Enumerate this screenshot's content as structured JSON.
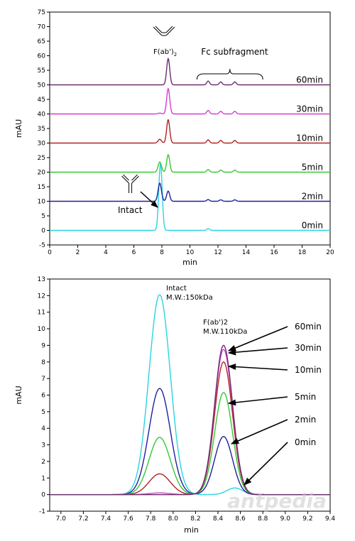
{
  "chart_data": [
    {
      "type": "line",
      "xlabel": "min",
      "ylabel": "mAU",
      "xlim": [
        0,
        20
      ],
      "ylim": [
        -5,
        75
      ],
      "xticks": [
        0,
        2,
        4,
        6,
        8,
        10,
        12,
        14,
        16,
        18,
        20
      ],
      "yticks": [
        -5,
        0,
        5,
        10,
        15,
        20,
        25,
        30,
        35,
        40,
        45,
        50,
        55,
        60,
        65,
        70,
        75
      ],
      "series": [
        {
          "name": "0min",
          "color": "#2ad4e0",
          "baseline": 0,
          "peaks": [
            {
              "x": 7.9,
              "height": 23,
              "width": 0.12
            },
            {
              "x": 11.3,
              "height": 0.6,
              "width": 0.1
            }
          ]
        },
        {
          "name": "2min",
          "color": "#1f1f9e",
          "baseline": 10,
          "peaks": [
            {
              "x": 7.85,
              "height": 6.2,
              "width": 0.12
            },
            {
              "x": 8.45,
              "height": 3.5,
              "width": 0.11
            },
            {
              "x": 11.3,
              "height": 0.6,
              "width": 0.1
            },
            {
              "x": 12.2,
              "height": 0.5,
              "width": 0.1
            },
            {
              "x": 13.2,
              "height": 0.5,
              "width": 0.1
            }
          ]
        },
        {
          "name": "5min",
          "color": "#35c835",
          "baseline": 20,
          "peaks": [
            {
              "x": 7.85,
              "height": 3.5,
              "width": 0.12
            },
            {
              "x": 8.45,
              "height": 6,
              "width": 0.11
            },
            {
              "x": 11.3,
              "height": 0.9,
              "width": 0.1
            },
            {
              "x": 12.2,
              "height": 0.7,
              "width": 0.1
            },
            {
              "x": 13.2,
              "height": 0.7,
              "width": 0.1
            }
          ]
        },
        {
          "name": "10min",
          "color": "#b22222",
          "baseline": 30,
          "peaks": [
            {
              "x": 7.85,
              "height": 1.3,
              "width": 0.12
            },
            {
              "x": 8.45,
              "height": 8,
              "width": 0.11
            },
            {
              "x": 11.3,
              "height": 1.1,
              "width": 0.1
            },
            {
              "x": 12.2,
              "height": 0.9,
              "width": 0.1
            },
            {
              "x": 13.2,
              "height": 0.9,
              "width": 0.1
            }
          ]
        },
        {
          "name": "30min",
          "color": "#d63cd6",
          "baseline": 40,
          "peaks": [
            {
              "x": 7.85,
              "height": 0.3,
              "width": 0.12
            },
            {
              "x": 8.45,
              "height": 8.7,
              "width": 0.11
            },
            {
              "x": 11.3,
              "height": 1.2,
              "width": 0.1
            },
            {
              "x": 12.2,
              "height": 0.9,
              "width": 0.1
            },
            {
              "x": 13.2,
              "height": 0.9,
              "width": 0.1
            }
          ]
        },
        {
          "name": "60min",
          "color": "#6b2f6b",
          "baseline": 50,
          "peaks": [
            {
              "x": 8.45,
              "height": 9,
              "width": 0.11
            },
            {
              "x": 11.3,
              "height": 1.3,
              "width": 0.1
            },
            {
              "x": 12.2,
              "height": 1,
              "width": 0.1
            },
            {
              "x": 13.2,
              "height": 1,
              "width": 0.1
            }
          ]
        }
      ],
      "annotations": {
        "fab": "F(ab')",
        "fab_sub": "2",
        "fc": "Fc subfragment",
        "intact": "Intact"
      }
    },
    {
      "type": "line",
      "xlabel": "min",
      "ylabel": "mAU",
      "xlim": [
        6.9,
        9.4
      ],
      "ylim": [
        -1,
        13
      ],
      "xticks": [
        7.0,
        7.2,
        7.4,
        7.6,
        7.8,
        8.0,
        8.2,
        8.4,
        8.6,
        8.8,
        9.0,
        9.2,
        9.4
      ],
      "yticks": [
        -1,
        0,
        1,
        2,
        3,
        4,
        5,
        6,
        7,
        8,
        9,
        10,
        11,
        12,
        13
      ],
      "series": [
        {
          "name": "0min",
          "color": "#2ad4e0",
          "peaks": [
            {
              "x": 7.88,
              "height": 12.05,
              "width": 0.095
            },
            {
              "x": 8.55,
              "height": 0.4,
              "width": 0.07
            }
          ]
        },
        {
          "name": "2min",
          "color": "#1f1f9e",
          "peaks": [
            {
              "x": 7.88,
              "height": 6.4,
              "width": 0.095
            },
            {
              "x": 8.45,
              "height": 3.5,
              "width": 0.08
            }
          ]
        },
        {
          "name": "5min",
          "color": "#35c835",
          "peaks": [
            {
              "x": 7.88,
              "height": 3.45,
              "width": 0.095
            },
            {
              "x": 8.45,
              "height": 6.15,
              "width": 0.08
            }
          ]
        },
        {
          "name": "10min",
          "color": "#b22222",
          "peaks": [
            {
              "x": 7.88,
              "height": 1.25,
              "width": 0.095
            },
            {
              "x": 8.45,
              "height": 8.0,
              "width": 0.08
            }
          ]
        },
        {
          "name": "30min",
          "color": "#d63cd6",
          "peaks": [
            {
              "x": 7.88,
              "height": 0.1,
              "width": 0.095
            },
            {
              "x": 8.45,
              "height": 8.75,
              "width": 0.08
            }
          ]
        },
        {
          "name": "60min",
          "color": "#6b2f6b",
          "peaks": [
            {
              "x": 8.45,
              "height": 9.0,
              "width": 0.08
            }
          ]
        }
      ],
      "annotations": {
        "intact": "Intact",
        "intact_mw": "M.W.:150kDa",
        "fab": "F(ab')2",
        "fab_mw": "M.W.110kDa"
      }
    }
  ],
  "watermark": "antpedia"
}
